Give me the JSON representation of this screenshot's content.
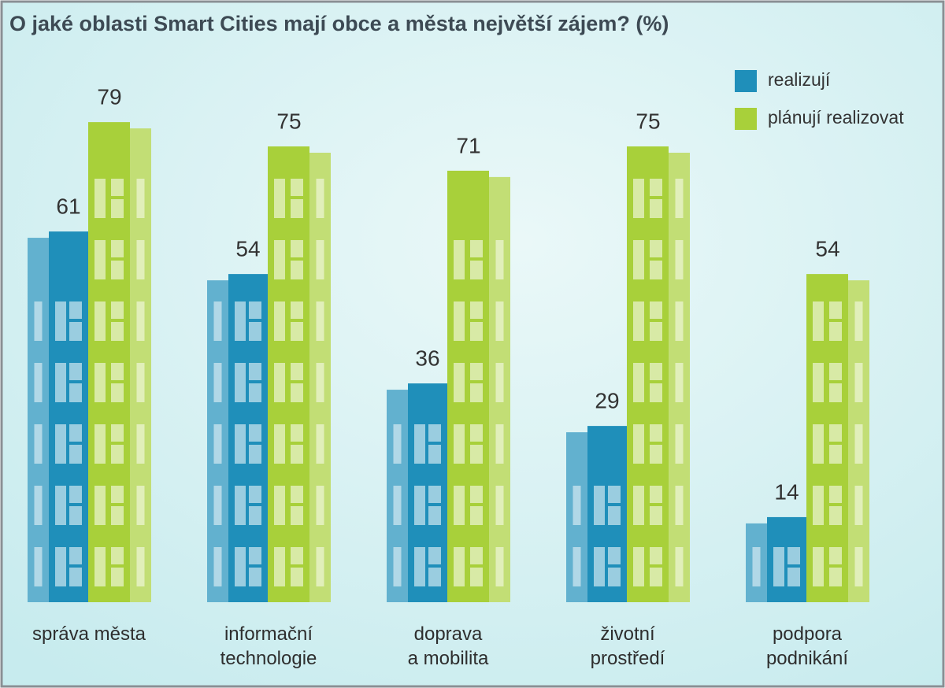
{
  "chart_data": {
    "type": "bar",
    "title": "O jaké oblasti Smart Cities mají obce a města největší zájem? (%)",
    "categories": [
      "správa města",
      "informační\ntechnologie",
      "doprava\na mobilita",
      "životní\nprostředí",
      "podpora\npodnikání"
    ],
    "series": [
      {
        "name": "realizují",
        "color": "#1f8fba",
        "values": [
          61,
          54,
          36,
          29,
          14
        ]
      },
      {
        "name": "plánují realizovat",
        "color": "#a8d03a",
        "values": [
          79,
          75,
          71,
          75,
          54
        ]
      }
    ],
    "legend": "top-right"
  }
}
